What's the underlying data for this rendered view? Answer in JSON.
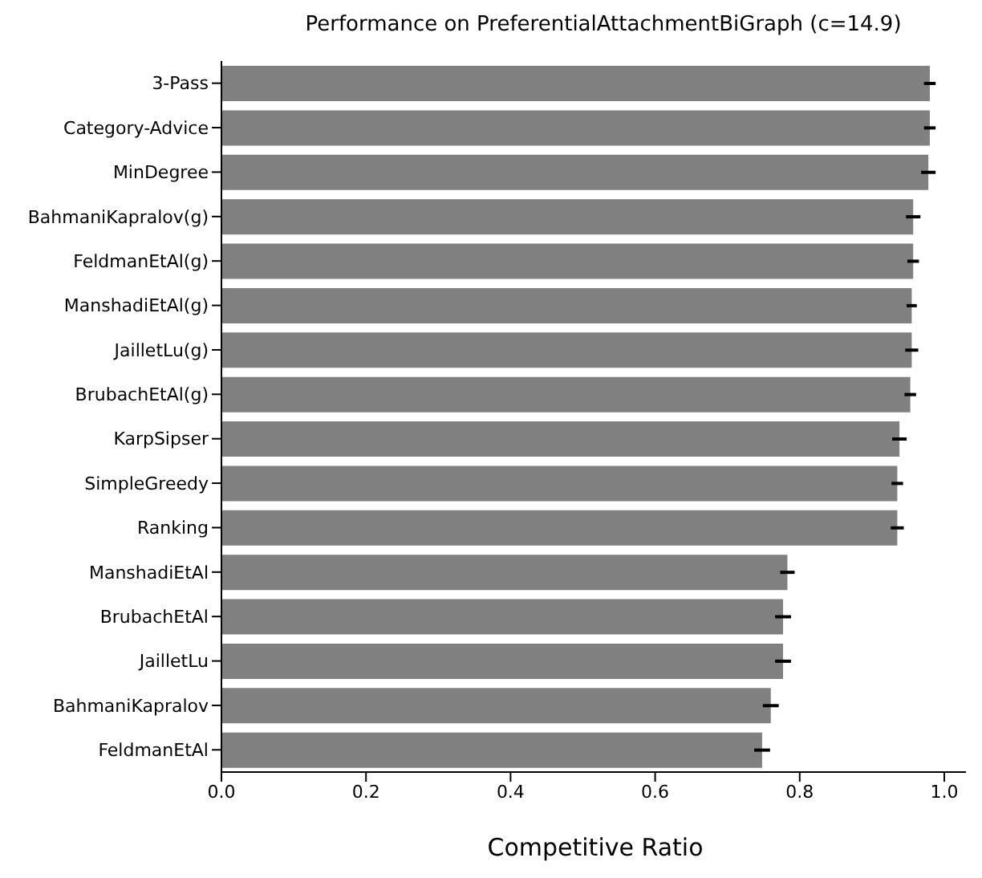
{
  "chart_data": {
    "type": "bar",
    "orientation": "horizontal",
    "title": "Performance on PreferentialAttachmentBiGraph (c=14.9)",
    "xlabel": "Competitive Ratio",
    "categories": [
      "3-Pass",
      "Category-Advice",
      "MinDegree",
      "BahmaniKapralov(g)",
      "FeldmanEtAl(g)",
      "ManshadiEtAl(g)",
      "JailletLu(g)",
      "BrubachEtAl(g)",
      "KarpSipser",
      "SimpleGreedy",
      "Ranking",
      "ManshadiEtAl",
      "BrubachEtAl",
      "JailletLu",
      "BahmaniKapralov",
      "FeldmanEtAl"
    ],
    "values": [
      0.98,
      0.98,
      0.978,
      0.957,
      0.957,
      0.955,
      0.955,
      0.953,
      0.938,
      0.935,
      0.935,
      0.783,
      0.777,
      0.777,
      0.76,
      0.748
    ],
    "errors": [
      0.008,
      0.008,
      0.01,
      0.01,
      0.008,
      0.007,
      0.009,
      0.008,
      0.01,
      0.008,
      0.009,
      0.01,
      0.011,
      0.011,
      0.011,
      0.011
    ],
    "color": "#808080",
    "xlim": [
      0,
      1.03
    ],
    "xticks": [
      {
        "value": 0,
        "label": "0.0"
      },
      {
        "value": 0.2,
        "label": "0.2"
      },
      {
        "value": 0.4,
        "label": "0.4"
      },
      {
        "value": 0.6,
        "label": "0.6"
      },
      {
        "value": 0.8,
        "label": "0.8"
      },
      {
        "value": 1,
        "label": "1.0"
      }
    ],
    "grid": false,
    "legend": false
  }
}
